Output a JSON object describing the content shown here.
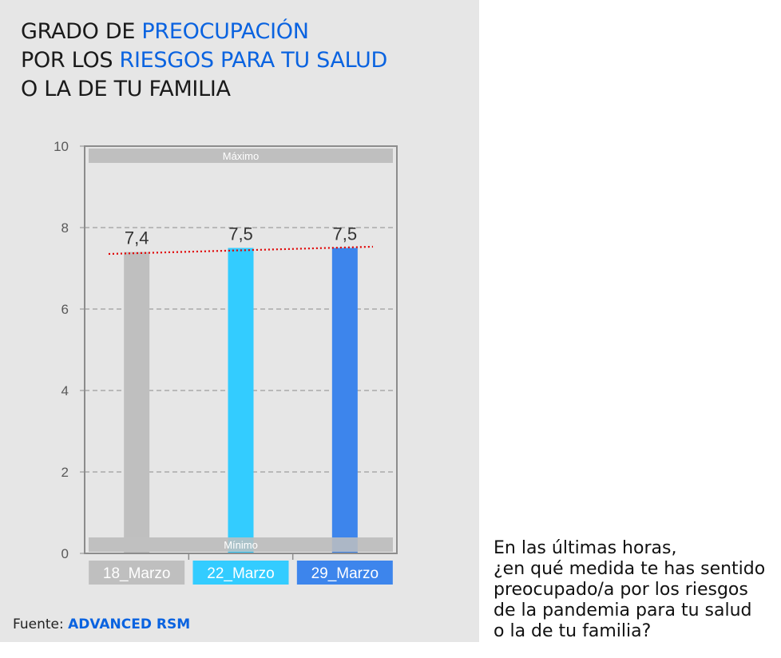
{
  "title": {
    "line1_a": "GRADO DE ",
    "line1_b": "PREOCUPACIÓN",
    "line2_a": "POR LOS ",
    "line2_b": "RIESGOS PARA TU SALUD",
    "line3": "O LA DE TU FAMILIA"
  },
  "chart_data": {
    "type": "bar",
    "categories": [
      "18_Marzo",
      "22_Marzo",
      "29_Marzo"
    ],
    "values": [
      7.4,
      7.5,
      7.5
    ],
    "value_labels": [
      "7,4",
      "7,5",
      "7,5"
    ],
    "bar_colors": [
      "#bfbfbf",
      "#33ccff",
      "#3d85ec"
    ],
    "ylim": [
      0,
      10
    ],
    "yticks": [
      0,
      2,
      4,
      6,
      8,
      10
    ],
    "grid": true,
    "max_band_label": "Máximo",
    "min_band_label": "Mínimo",
    "trendline": true,
    "trendline_color": "#e00000"
  },
  "source": {
    "label": "Fuente: ",
    "name": "ADVANCED RSM"
  },
  "question": {
    "lines": [
      "En las últimas horas,",
      "¿en qué medida te has sentido",
      "preocupado/a por los riesgos",
      "de la pandemia para tu salud",
      "o la de tu familia?"
    ]
  },
  "colors": {
    "accent": "#0a63e0",
    "panel_bg": "#e6e6e6"
  }
}
